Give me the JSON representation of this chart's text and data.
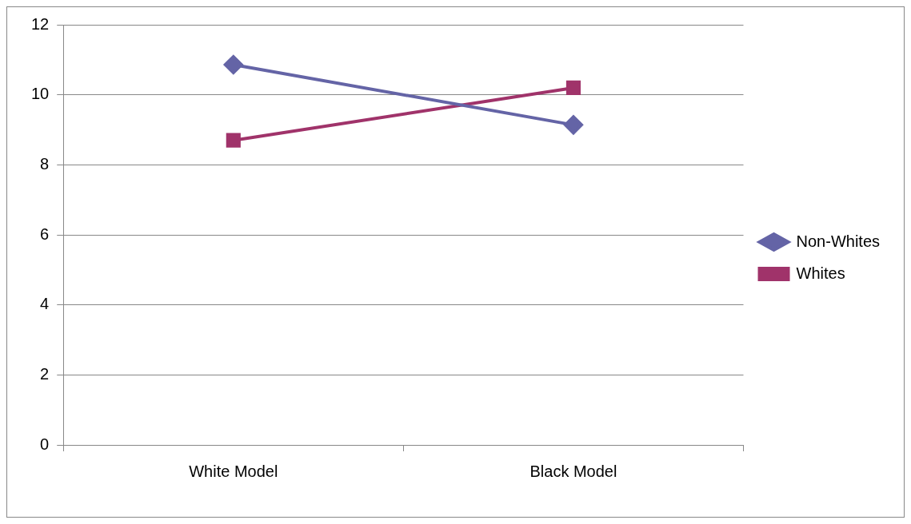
{
  "chart_data": {
    "type": "line",
    "categories": [
      "White Model",
      "Black Model"
    ],
    "series": [
      {
        "name": "Non-Whites",
        "color": "#6464a6",
        "values": [
          10.86,
          9.14
        ],
        "marker": "diamond"
      },
      {
        "name": "Whites",
        "color": "#a0336a",
        "values": [
          8.7,
          10.2
        ],
        "marker": "square"
      }
    ],
    "ylim": [
      0,
      12
    ],
    "yticks": [
      0,
      2,
      4,
      6,
      8,
      10,
      12
    ],
    "grid": "y",
    "legend": "right",
    "line_style": "solid"
  }
}
